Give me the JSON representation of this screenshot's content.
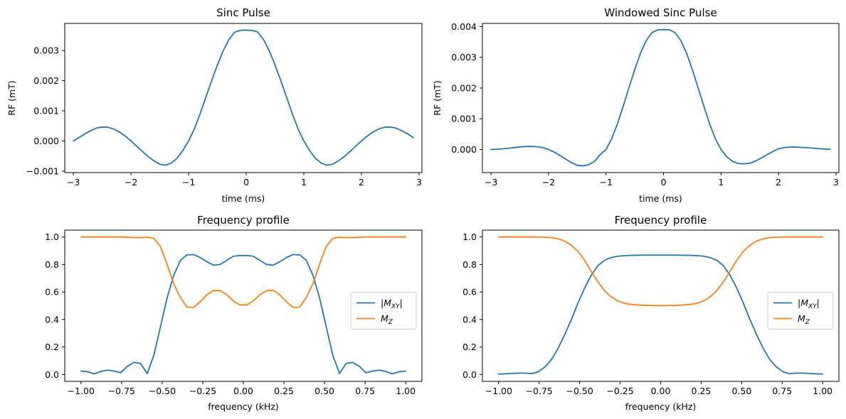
{
  "chart_data": [
    {
      "type": "line",
      "title": "Sinc Pulse",
      "xlabel": "time (ms)",
      "ylabel": "RF (mT)",
      "xlim": [
        -3.15,
        3.05
      ],
      "ylim": [
        -0.00105,
        0.0039
      ],
      "xticks": [
        -3,
        -2,
        -1,
        0,
        1,
        2,
        3
      ],
      "xtick_labels": [
        "−3",
        "−2",
        "−1",
        "0",
        "1",
        "2",
        "3"
      ],
      "yticks": [
        -0.001,
        0.0,
        0.001,
        0.002,
        0.003
      ],
      "ytick_labels": [
        "−0.001",
        "0.000",
        "0.001",
        "0.002",
        "0.003"
      ],
      "grid": false,
      "series": [
        {
          "color": "#1f77b4",
          "x": [
            -3.0,
            -2.9,
            -2.8,
            -2.7,
            -2.6,
            -2.5,
            -2.4,
            -2.3,
            -2.2,
            -2.1,
            -2.0,
            -1.9,
            -1.8,
            -1.7,
            -1.6,
            -1.5,
            -1.4,
            -1.3,
            -1.2,
            -1.1,
            -1.0,
            -0.9,
            -0.8,
            -0.7,
            -0.6,
            -0.5,
            -0.4,
            -0.3,
            -0.2,
            -0.1,
            0.0,
            0.1,
            0.2,
            0.3,
            0.4,
            0.5,
            0.6,
            0.7,
            0.8,
            0.9,
            1.0,
            1.1,
            1.2,
            1.3,
            1.4,
            1.5,
            1.6,
            1.7,
            1.8,
            1.9,
            2.0,
            2.1,
            2.2,
            2.3,
            2.4,
            2.5,
            2.6,
            2.7,
            2.8,
            2.9
          ],
          "y": [
            0.0,
            0.000115,
            0.000236,
            0.00034,
            0.000425,
            0.000463,
            0.000454,
            0.000395,
            0.000296,
            0.000161,
            0.0,
            -0.000177,
            -0.000353,
            -0.000524,
            -0.00066,
            -0.000774,
            -0.000806,
            -0.000734,
            -0.000574,
            -0.000317,
            0.0,
            0.000397,
            0.000903,
            0.001453,
            0.002001,
            0.002523,
            0.00299,
            0.003366,
            0.003614,
            0.003671,
            0.003678,
            0.003671,
            0.003614,
            0.003366,
            0.00299,
            0.002523,
            0.002001,
            0.001453,
            0.000903,
            0.000397,
            0.0,
            -0.000317,
            -0.000574,
            -0.000734,
            -0.000806,
            -0.000774,
            -0.00066,
            -0.000524,
            -0.000353,
            -0.000177,
            0.0,
            0.000161,
            0.000296,
            0.000395,
            0.000454,
            0.000463,
            0.000425,
            0.00034,
            0.000236,
            0.000115
          ]
        }
      ]
    },
    {
      "type": "line",
      "title": "Windowed Sinc Pulse",
      "xlabel": "time (ms)",
      "ylabel": "RF (mT)",
      "xlim": [
        -3.15,
        3.05
      ],
      "ylim": [
        -0.00075,
        0.0041
      ],
      "xticks": [
        -3,
        -2,
        -1,
        0,
        1,
        2,
        3
      ],
      "xtick_labels": [
        "−3",
        "−2",
        "−1",
        "0",
        "1",
        "2",
        "3"
      ],
      "yticks": [
        0.0,
        0.001,
        0.002,
        0.003,
        0.004
      ],
      "ytick_labels": [
        "0.000",
        "0.001",
        "0.002",
        "0.003",
        "0.004"
      ],
      "grid": false,
      "series": [
        {
          "color": "#1f77b4",
          "x": [
            -3.0,
            -2.9,
            -2.8,
            -2.7,
            -2.6,
            -2.5,
            -2.4,
            -2.3,
            -2.2,
            -2.1,
            -2.0,
            -1.9,
            -1.8,
            -1.7,
            -1.6,
            -1.5,
            -1.4,
            -1.3,
            -1.2,
            -1.1,
            -1.0,
            -0.9,
            -0.8,
            -0.7,
            -0.6,
            -0.5,
            -0.4,
            -0.3,
            -0.2,
            -0.1,
            0.0,
            0.1,
            0.2,
            0.3,
            0.4,
            0.5,
            0.6,
            0.7,
            0.8,
            0.9,
            1.0,
            1.1,
            1.2,
            1.3,
            1.4,
            1.5,
            1.6,
            1.7,
            1.8,
            1.9,
            2.0,
            2.1,
            2.2,
            2.3,
            2.4,
            2.5,
            2.6,
            2.7,
            2.8,
            2.9
          ],
          "y": [
            0.0,
            1e-05,
            2.3e-05,
            4.1e-05,
            6.3e-05,
            8.3e-05,
            9.7e-05,
            0.0001,
            9.1e-05,
            6.1e-05,
            0.0,
            -8.6e-05,
            -0.000194,
            -0.000314,
            -0.000425,
            -0.000515,
            -0.000532,
            -0.000492,
            -0.000386,
            -0.000161,
            0.0,
            0.000359,
            0.000843,
            0.00142,
            0.002015,
            0.002603,
            0.003135,
            0.003546,
            0.003805,
            0.003895,
            0.003899,
            0.003895,
            0.003805,
            0.003546,
            0.003135,
            0.002603,
            0.002015,
            0.00142,
            0.000843,
            0.000359,
            0.0,
            -0.000232,
            -0.000386,
            -0.000452,
            -0.000468,
            -0.000447,
            -0.000375,
            -0.000278,
            -0.000168,
            -6.5e-05,
            2.5e-05,
            6.3e-05,
            7.7e-05,
            7.8e-05,
            7e-05,
            5.8e-05,
            4.3e-05,
            2.9e-05,
            1.6e-05,
            6e-06
          ]
        }
      ]
    },
    {
      "type": "line",
      "title": "Frequency profile",
      "xlabel": "frequency (kHz)",
      "ylabel": "",
      "xlim": [
        -1.1,
        1.1
      ],
      "ylim": [
        -0.05,
        1.05
      ],
      "xticks": [
        -1.0,
        -0.75,
        -0.5,
        -0.25,
        0.0,
        0.25,
        0.5,
        0.75,
        1.0
      ],
      "xtick_labels": [
        "−1.00",
        "−0.75",
        "−0.50",
        "−0.25",
        "0.00",
        "0.25",
        "0.50",
        "0.75",
        "1.00"
      ],
      "yticks": [
        0.0,
        0.2,
        0.4,
        0.6,
        0.8,
        1.0
      ],
      "ytick_labels": [
        "0.0",
        "0.2",
        "0.4",
        "0.6",
        "0.8",
        "1.0"
      ],
      "grid": false,
      "legend_position": "center-right",
      "legend": [
        {
          "label_main": "|M",
          "label_sub": "XY",
          "label_tail": "|",
          "color": "#1f77b4"
        },
        {
          "label_main": "M",
          "label_sub": "Z",
          "label_tail": "",
          "color": "#ff7f0e"
        }
      ],
      "series": [
        {
          "color": "#1f77b4",
          "x": [
            -1.0,
            -0.959,
            -0.918,
            -0.878,
            -0.837,
            -0.796,
            -0.755,
            -0.714,
            -0.673,
            -0.633,
            -0.592,
            -0.551,
            -0.51,
            -0.469,
            -0.429,
            -0.388,
            -0.347,
            -0.306,
            -0.265,
            -0.224,
            -0.184,
            -0.143,
            -0.102,
            -0.061,
            -0.02,
            0.02,
            0.061,
            0.102,
            0.143,
            0.184,
            0.224,
            0.265,
            0.306,
            0.347,
            0.388,
            0.429,
            0.469,
            0.51,
            0.551,
            0.592,
            0.633,
            0.673,
            0.714,
            0.755,
            0.796,
            0.837,
            0.878,
            0.918,
            0.959,
            1.0
          ],
          "y": [
            0.025,
            0.02,
            0.005,
            0.022,
            0.032,
            0.025,
            0.013,
            0.06,
            0.088,
            0.08,
            0.007,
            0.14,
            0.35,
            0.56,
            0.72,
            0.83,
            0.87,
            0.872,
            0.85,
            0.82,
            0.795,
            0.8,
            0.83,
            0.86,
            0.865,
            0.865,
            0.86,
            0.83,
            0.8,
            0.795,
            0.82,
            0.85,
            0.872,
            0.87,
            0.83,
            0.72,
            0.56,
            0.35,
            0.14,
            0.007,
            0.08,
            0.088,
            0.06,
            0.013,
            0.025,
            0.032,
            0.022,
            0.005,
            0.02,
            0.025
          ]
        },
        {
          "color": "#ff7f0e",
          "x": [
            -1.0,
            -0.959,
            -0.918,
            -0.878,
            -0.837,
            -0.796,
            -0.755,
            -0.714,
            -0.673,
            -0.633,
            -0.592,
            -0.551,
            -0.51,
            -0.469,
            -0.429,
            -0.388,
            -0.347,
            -0.306,
            -0.265,
            -0.224,
            -0.184,
            -0.143,
            -0.102,
            -0.061,
            -0.02,
            0.02,
            0.061,
            0.102,
            0.143,
            0.184,
            0.224,
            0.265,
            0.306,
            0.347,
            0.388,
            0.429,
            0.469,
            0.51,
            0.551,
            0.592,
            0.633,
            0.673,
            0.714,
            0.755,
            0.796,
            0.837,
            0.878,
            0.918,
            0.959,
            1.0
          ],
          "y": [
            1.0,
            1.0,
            1.0,
            1.0,
            1.0,
            1.0,
            1.0,
            0.998,
            0.996,
            0.995,
            0.998,
            0.99,
            0.93,
            0.8,
            0.66,
            0.56,
            0.49,
            0.488,
            0.53,
            0.58,
            0.612,
            0.61,
            0.58,
            0.535,
            0.505,
            0.505,
            0.535,
            0.58,
            0.61,
            0.612,
            0.58,
            0.53,
            0.488,
            0.49,
            0.56,
            0.66,
            0.8,
            0.93,
            0.99,
            0.998,
            0.995,
            0.996,
            0.998,
            1.0,
            1.0,
            1.0,
            1.0,
            1.0,
            1.0,
            1.0
          ]
        }
      ]
    },
    {
      "type": "line",
      "title": "Frequency profile",
      "xlabel": "frequency (kHz)",
      "ylabel": "",
      "xlim": [
        -1.1,
        1.1
      ],
      "ylim": [
        -0.05,
        1.05
      ],
      "xticks": [
        -1.0,
        -0.75,
        -0.5,
        -0.25,
        0.0,
        0.25,
        0.5,
        0.75,
        1.0
      ],
      "xtick_labels": [
        "−1.00",
        "−0.75",
        "−0.50",
        "−0.25",
        "0.00",
        "0.25",
        "0.50",
        "0.75",
        "1.00"
      ],
      "yticks": [
        0.0,
        0.2,
        0.4,
        0.6,
        0.8,
        1.0
      ],
      "ytick_labels": [
        "0.0",
        "0.2",
        "0.4",
        "0.6",
        "0.8",
        "1.0"
      ],
      "grid": false,
      "legend_position": "center-right",
      "legend": [
        {
          "label_main": "|M",
          "label_sub": "XY",
          "label_tail": "|",
          "color": "#1f77b4"
        },
        {
          "label_main": "M",
          "label_sub": "Z",
          "label_tail": "",
          "color": "#ff7f0e"
        }
      ],
      "series": [
        {
          "color": "#1f77b4",
          "x": [
            -1.0,
            -0.959,
            -0.918,
            -0.878,
            -0.837,
            -0.796,
            -0.755,
            -0.714,
            -0.673,
            -0.633,
            -0.592,
            -0.551,
            -0.51,
            -0.469,
            -0.429,
            -0.388,
            -0.347,
            -0.306,
            -0.265,
            -0.224,
            -0.184,
            -0.143,
            -0.102,
            -0.061,
            -0.02,
            0.02,
            0.061,
            0.102,
            0.143,
            0.184,
            0.224,
            0.265,
            0.306,
            0.347,
            0.388,
            0.429,
            0.469,
            0.51,
            0.551,
            0.592,
            0.633,
            0.673,
            0.714,
            0.755,
            0.796,
            0.837,
            0.878,
            0.918,
            0.959,
            1.0
          ],
          "y": [
            0.003,
            0.005,
            0.008,
            0.01,
            0.01,
            0.006,
            0.02,
            0.055,
            0.11,
            0.19,
            0.29,
            0.4,
            0.52,
            0.63,
            0.72,
            0.79,
            0.83,
            0.85,
            0.86,
            0.864,
            0.866,
            0.867,
            0.868,
            0.868,
            0.868,
            0.868,
            0.868,
            0.868,
            0.867,
            0.866,
            0.864,
            0.86,
            0.85,
            0.83,
            0.79,
            0.72,
            0.63,
            0.52,
            0.4,
            0.29,
            0.19,
            0.11,
            0.055,
            0.02,
            0.006,
            0.01,
            0.01,
            0.008,
            0.005,
            0.003
          ]
        },
        {
          "color": "#ff7f0e",
          "x": [
            -1.0,
            -0.959,
            -0.918,
            -0.878,
            -0.837,
            -0.796,
            -0.755,
            -0.714,
            -0.673,
            -0.633,
            -0.592,
            -0.551,
            -0.51,
            -0.469,
            -0.429,
            -0.388,
            -0.347,
            -0.306,
            -0.265,
            -0.224,
            -0.184,
            -0.143,
            -0.102,
            -0.061,
            -0.02,
            0.02,
            0.061,
            0.102,
            0.143,
            0.184,
            0.224,
            0.265,
            0.306,
            0.347,
            0.388,
            0.429,
            0.469,
            0.51,
            0.551,
            0.592,
            0.633,
            0.673,
            0.714,
            0.755,
            0.796,
            0.837,
            0.878,
            0.918,
            0.959,
            1.0
          ],
          "y": [
            1.0,
            1.0,
            1.0,
            1.0,
            1.0,
            1.0,
            0.999,
            0.998,
            0.995,
            0.987,
            0.97,
            0.94,
            0.895,
            0.83,
            0.75,
            0.675,
            0.61,
            0.565,
            0.535,
            0.518,
            0.51,
            0.506,
            0.503,
            0.502,
            0.501,
            0.501,
            0.502,
            0.503,
            0.506,
            0.51,
            0.518,
            0.535,
            0.565,
            0.61,
            0.675,
            0.75,
            0.83,
            0.895,
            0.94,
            0.97,
            0.987,
            0.995,
            0.998,
            0.999,
            1.0,
            1.0,
            1.0,
            1.0,
            1.0,
            1.0
          ]
        }
      ]
    }
  ]
}
